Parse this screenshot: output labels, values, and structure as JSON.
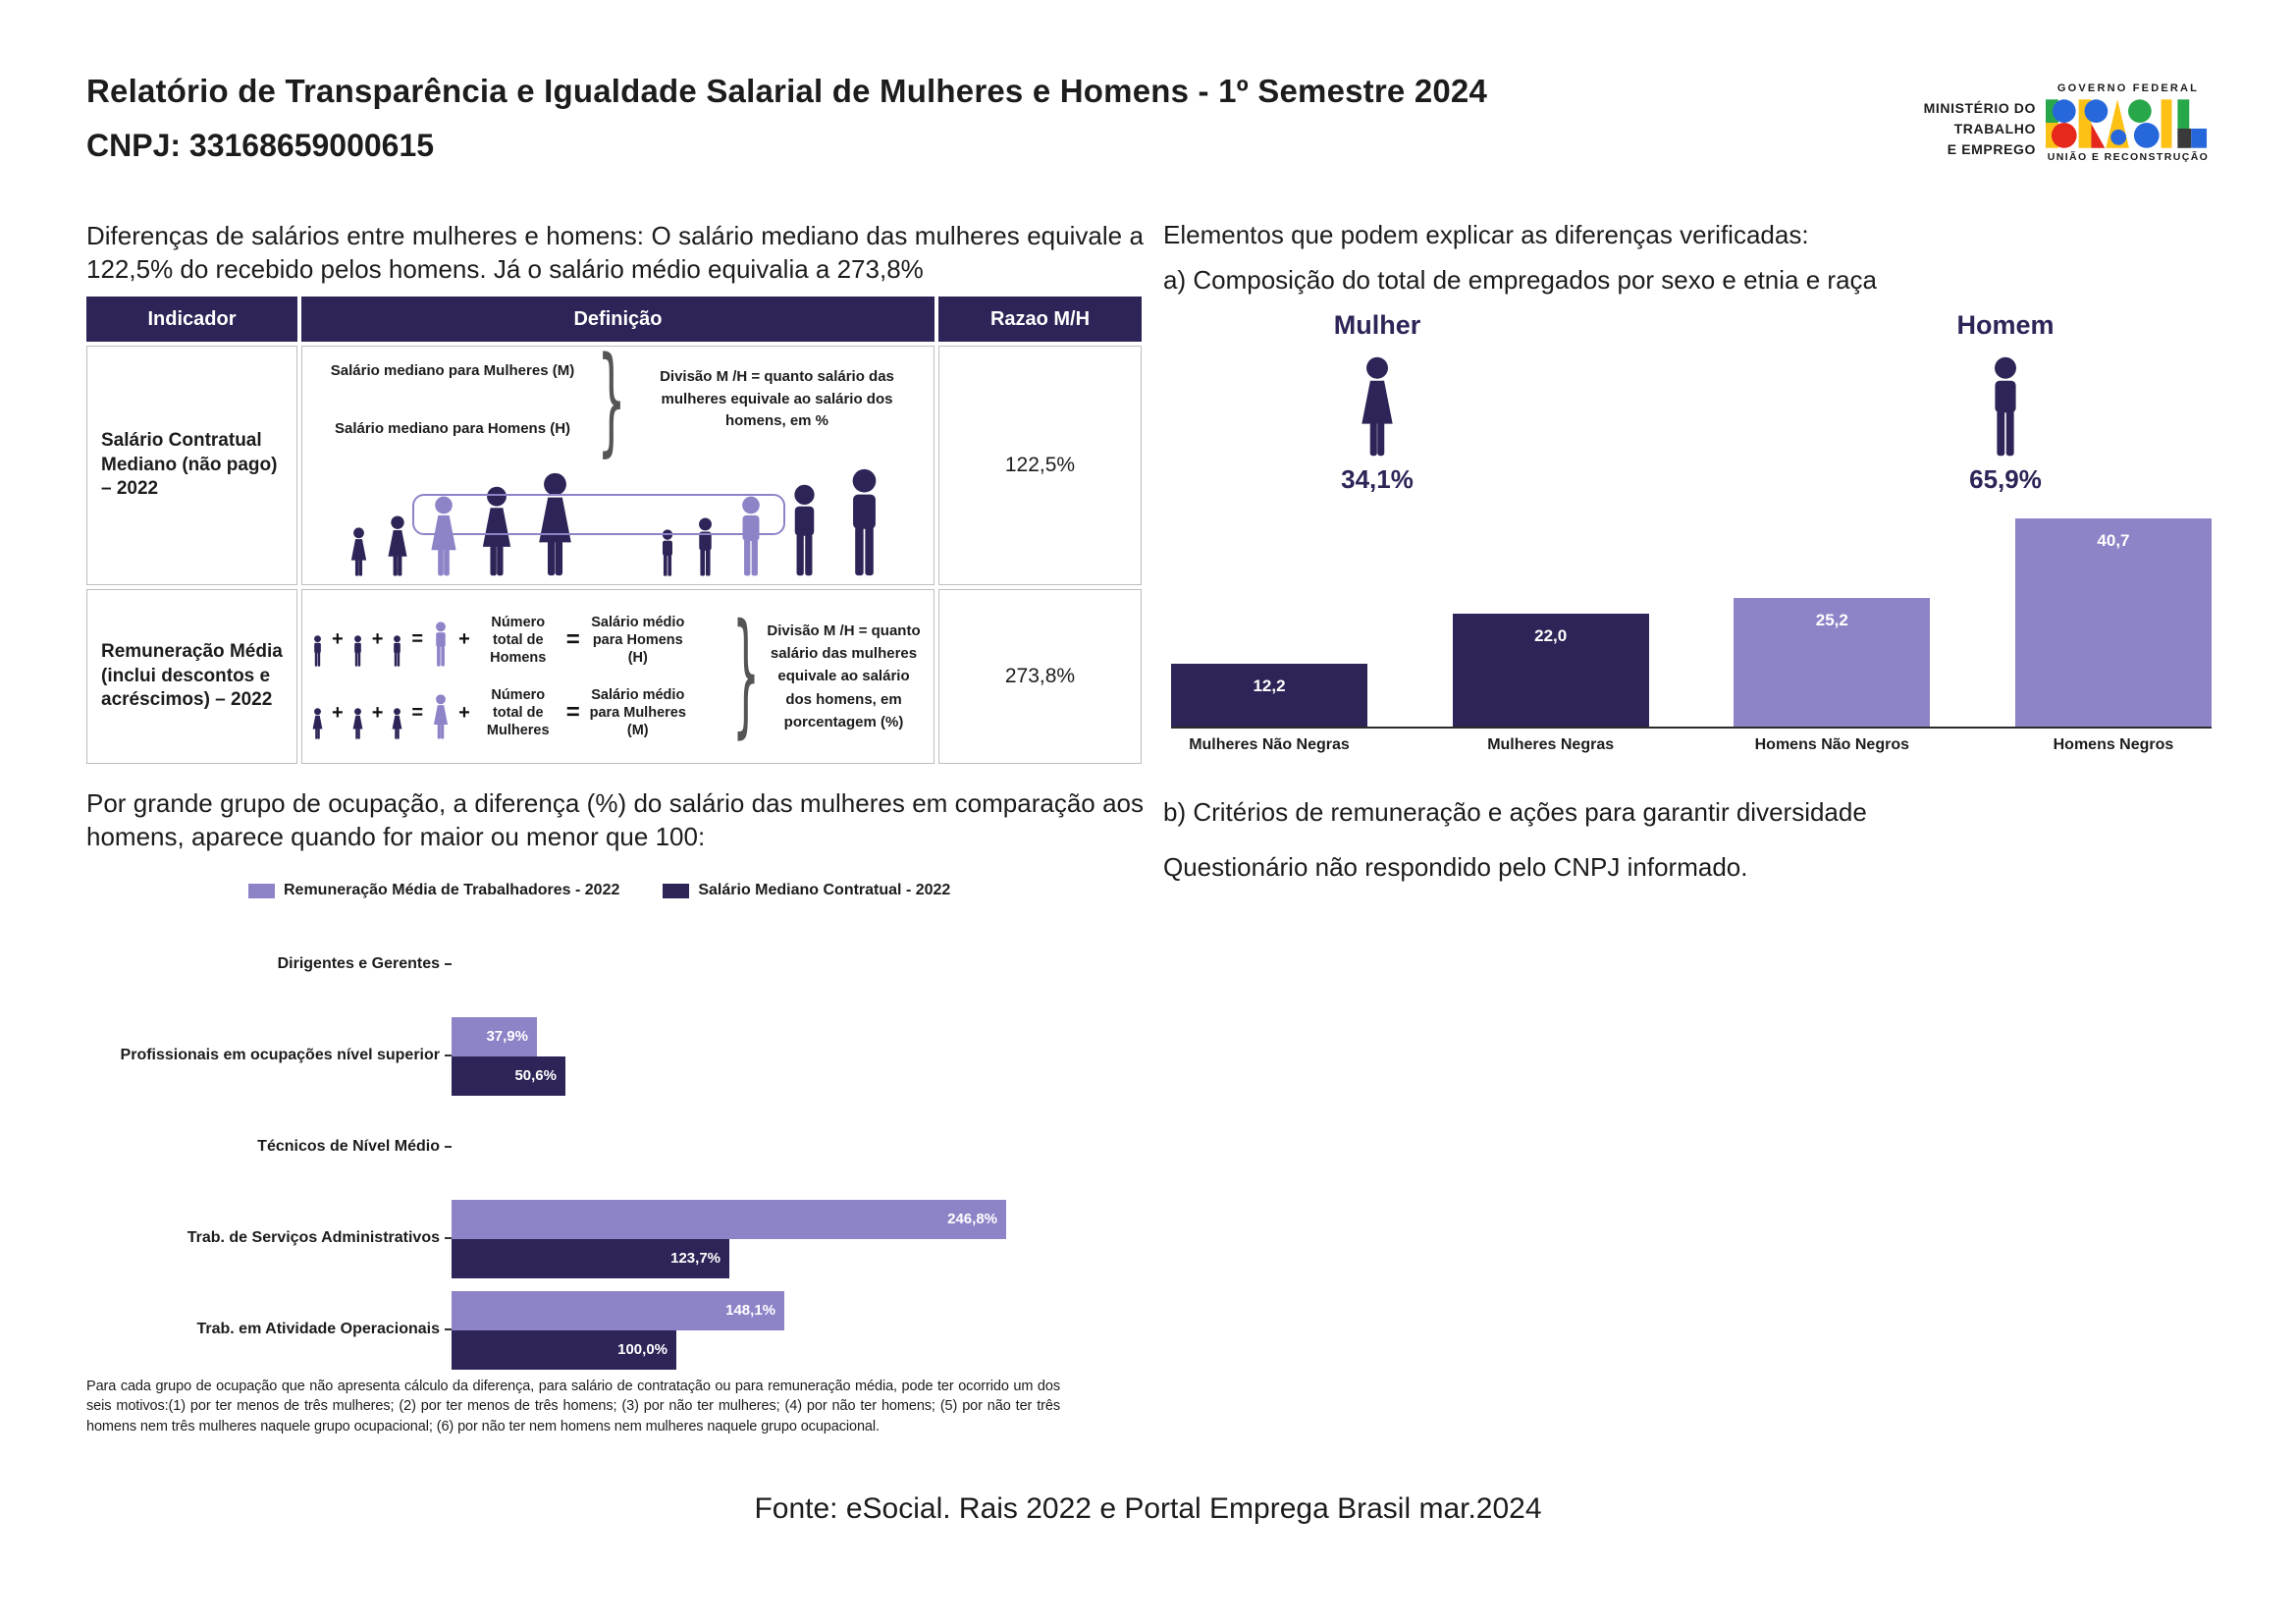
{
  "header": {
    "title": "Relatório de Transparência e Igualdade Salarial de Mulheres e Homens - 1º Semestre 2024",
    "cnpj": "CNPJ: 33168659000615",
    "ministry_line1": "MINISTÉRIO DO",
    "ministry_line2": "TRABALHO",
    "ministry_line3": "E EMPREGO",
    "gov_logo_top": "GOVERNO FEDERAL",
    "gov_logo_word": "BRASIL",
    "gov_logo_bottom": "UNIÃO E RECONSTRUÇÃO"
  },
  "left": {
    "intro": "Diferenças de salários entre mulheres e homens: O salário mediano das mulheres equivale a 122,5% do recebido pelos homens. Já o salário médio equivalia a 273,8%",
    "table": {
      "headers": [
        "Indicador",
        "Definição",
        "Razao M/H"
      ],
      "row1": {
        "indicator": "Salário Contratual Mediano (não pago) – 2022",
        "def_line1": "Salário mediano para Mulheres (M)",
        "def_line2": "Salário mediano para Homens (H)",
        "note": "Divisão M /H = quanto salário das mulheres equivale ao salário dos homens, em %",
        "ratio": "122,5%"
      },
      "row2": {
        "indicator": "Remuneração Média (inclui descontos e acréscimos) – 2022",
        "eq1_label1": "Número total de Homens",
        "eq1_label2": "Salário médio para Homens (H)",
        "eq2_label1": "Número total de Mulheres",
        "eq2_label2": "Salário médio para Mulheres (M)",
        "plus": "+",
        "equals": "=",
        "note": "Divisão M /H = quanto salário das mulheres equivale ao salário dos homens, em porcentagem (%)",
        "ratio": "273,8%"
      }
    },
    "occupation_heading": "Por grande grupo de ocupação, a diferença (%) do salário das mulheres em comparação aos homens, aparece quando for maior ou menor que 100:",
    "footnote": "Para cada grupo de ocupação que não apresenta cálculo da diferença, para salário de contratação ou para remuneração média, pode ter ocorrido um dos seis motivos:(1) por ter menos de três mulheres; (2) por ter menos de três homens; (3) por não ter mulheres; (4) por não ter homens; (5) por não ter três homens nem três mulheres naquele grupo ocupacional; (6) por não ter nem homens nem mulheres naquele grupo ocupacional."
  },
  "right": {
    "heading": "Elementos que podem explicar as diferenças verificadas:",
    "sub_a": "a) Composição do total de empregados por sexo e etnia e raça",
    "sub_b": "b) Critérios de remuneração e ações para garantir diversidade",
    "sub_b2": "Questionário não respondido pelo CNPJ informado."
  },
  "footer": "Fonte: eSocial. Rais 2022 e Portal Emprega Brasil mar.2024",
  "colors": {
    "dark_purple": "#2e2457",
    "light_purple": "#8d84c8",
    "axis": "#2b2b2b"
  },
  "chart_data": [
    {
      "name": "sex-composition-pictogram",
      "type": "pictogram",
      "categories": [
        "Mulher",
        "Homem"
      ],
      "values": [
        34.1,
        65.9
      ],
      "labels": [
        "34,1%",
        "65,9%"
      ]
    },
    {
      "name": "composition-by-sex-race",
      "type": "bar",
      "orientation": "vertical",
      "title": "a) Composição do total de empregados por sexo e etnia e raça",
      "categories": [
        "Mulheres Não Negras",
        "Mulheres Negras",
        "Homens Não Negros",
        "Homens Negros"
      ],
      "values": [
        12.2,
        22.0,
        25.2,
        40.7
      ],
      "labels": [
        "12,2",
        "22,0",
        "25,2",
        "40,7"
      ],
      "bar_color_keys": [
        "dark_purple",
        "dark_purple",
        "light_purple",
        "light_purple"
      ],
      "ylim": [
        0,
        43
      ],
      "grid": false,
      "legend": false
    },
    {
      "name": "occupation-salary-gap",
      "type": "bar",
      "orientation": "horizontal",
      "title": "Por grande grupo de ocupação, a diferença (%) do salário das mulheres em comparação aos homens",
      "categories": [
        "Dirigentes e Gerentes",
        "Profissionais em ocupações nível superior",
        "Técnicos de Nível Médio",
        "Trab. de Serviços Administrativos",
        "Trab. em Atividade Operacionais"
      ],
      "series": [
        {
          "name": "Remuneração Média de Trabalhadores - 2022",
          "color_key": "light_purple",
          "values": [
            null,
            37.9,
            null,
            246.8,
            148.1
          ],
          "labels": [
            "",
            "37,9%",
            "",
            "246,8%",
            "148,1%"
          ]
        },
        {
          "name": "Salário Mediano Contratual - 2022",
          "color_key": "dark_purple",
          "values": [
            null,
            50.6,
            null,
            123.7,
            100.0
          ],
          "labels": [
            "",
            "50,6%",
            "",
            "123,7%",
            "100,0%"
          ]
        }
      ],
      "xlim": [
        0,
        260
      ],
      "grid": false,
      "legend_position": "top"
    }
  ]
}
